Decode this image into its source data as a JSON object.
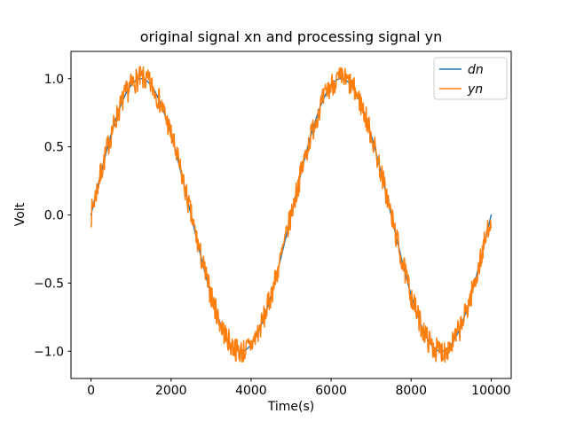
{
  "chart_data": {
    "type": "line",
    "title": "original signal xn and processing signal yn",
    "xlabel": "Time(s)",
    "ylabel": "Volt",
    "xlim": [
      -500,
      10500
    ],
    "ylim": [
      -1.2,
      1.2
    ],
    "grid": false,
    "background": "#ffffff",
    "axes_edge_color": "#000000",
    "legend": {
      "position": "upper right",
      "border_color": "#cccccc",
      "entries": [
        "dn",
        "yn"
      ]
    },
    "xticks": {
      "values": [
        0,
        2000,
        4000,
        6000,
        8000,
        10000
      ],
      "labels": [
        "0",
        "2000",
        "4000",
        "6000",
        "8000",
        "10000"
      ]
    },
    "yticks": {
      "values": [
        -1.0,
        -0.5,
        0.0,
        0.5,
        1.0
      ],
      "labels": [
        "−1.0",
        "−0.5",
        "0.0",
        "0.5",
        "1.0"
      ]
    },
    "series": [
      {
        "name": "dn",
        "color": "#1f77b4",
        "line_width": 1.5,
        "model": "amplitude * sin(2*pi*t/period)",
        "amplitude": 1.0,
        "period": 5000,
        "t_range": [
          0,
          10000
        ],
        "sample_step": 20,
        "sampled_points": {
          "t": [
            0,
            250,
            500,
            750,
            1000,
            1250,
            1500,
            1750,
            2000,
            2250,
            2500,
            2750,
            3000,
            3250,
            3500,
            3750,
            4000,
            4250,
            4500,
            4750,
            5000,
            5250,
            5500,
            5750,
            6000,
            6250,
            6500,
            6750,
            7000,
            7250,
            7500,
            7750,
            8000,
            8250,
            8500,
            8750,
            9000,
            9250,
            9500,
            9750,
            10000
          ],
          "v": [
            0.0,
            0.309,
            0.588,
            0.809,
            0.951,
            1.0,
            0.951,
            0.809,
            0.588,
            0.309,
            0.0,
            -0.309,
            -0.588,
            -0.809,
            -0.951,
            -1.0,
            -0.951,
            -0.809,
            -0.588,
            -0.309,
            0.0,
            0.309,
            0.588,
            0.809,
            0.951,
            1.0,
            0.951,
            0.809,
            0.588,
            0.309,
            0.0,
            -0.309,
            -0.588,
            -0.809,
            -0.951,
            -1.0,
            -0.951,
            -0.809,
            -0.588,
            -0.309,
            0.0
          ]
        }
      },
      {
        "name": "yn",
        "color": "#ff7f0e",
        "line_width": 1.5,
        "model": "dn + uniform_noise",
        "amplitude": 1.0,
        "period": 5000,
        "t_range": [
          0,
          10000
        ],
        "sample_step": 12,
        "noise_type": "uniform",
        "noise_amplitude": 0.09,
        "seed": 7
      }
    ]
  }
}
